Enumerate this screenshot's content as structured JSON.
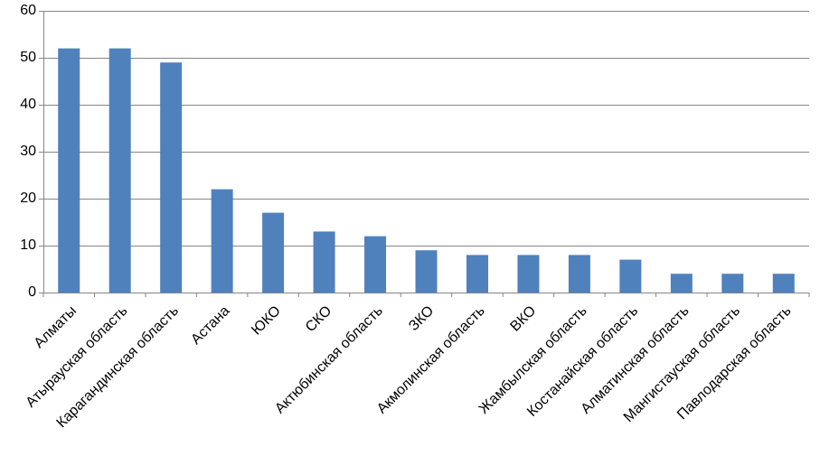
{
  "chart_data": {
    "type": "bar",
    "categories": [
      "Алматы",
      "Атырауская область",
      "Карагандинская область",
      "Астана",
      "ЮКО",
      "СКО",
      "Актюбинская область",
      "ЗКО",
      "Акмолинская область",
      "ВКО",
      "Жамбылская область",
      "Костанайская область",
      "Алматинская область",
      "Мангистауская область",
      "Павлодарская область"
    ],
    "values": [
      52,
      52,
      49,
      22,
      17,
      13,
      12,
      9,
      8,
      8,
      8,
      7,
      4,
      4,
      4
    ],
    "color": "#4f81bd",
    "ylim": [
      0,
      60
    ],
    "yticks": [
      0,
      10,
      20,
      30,
      40,
      50,
      60
    ],
    "grid": true
  }
}
